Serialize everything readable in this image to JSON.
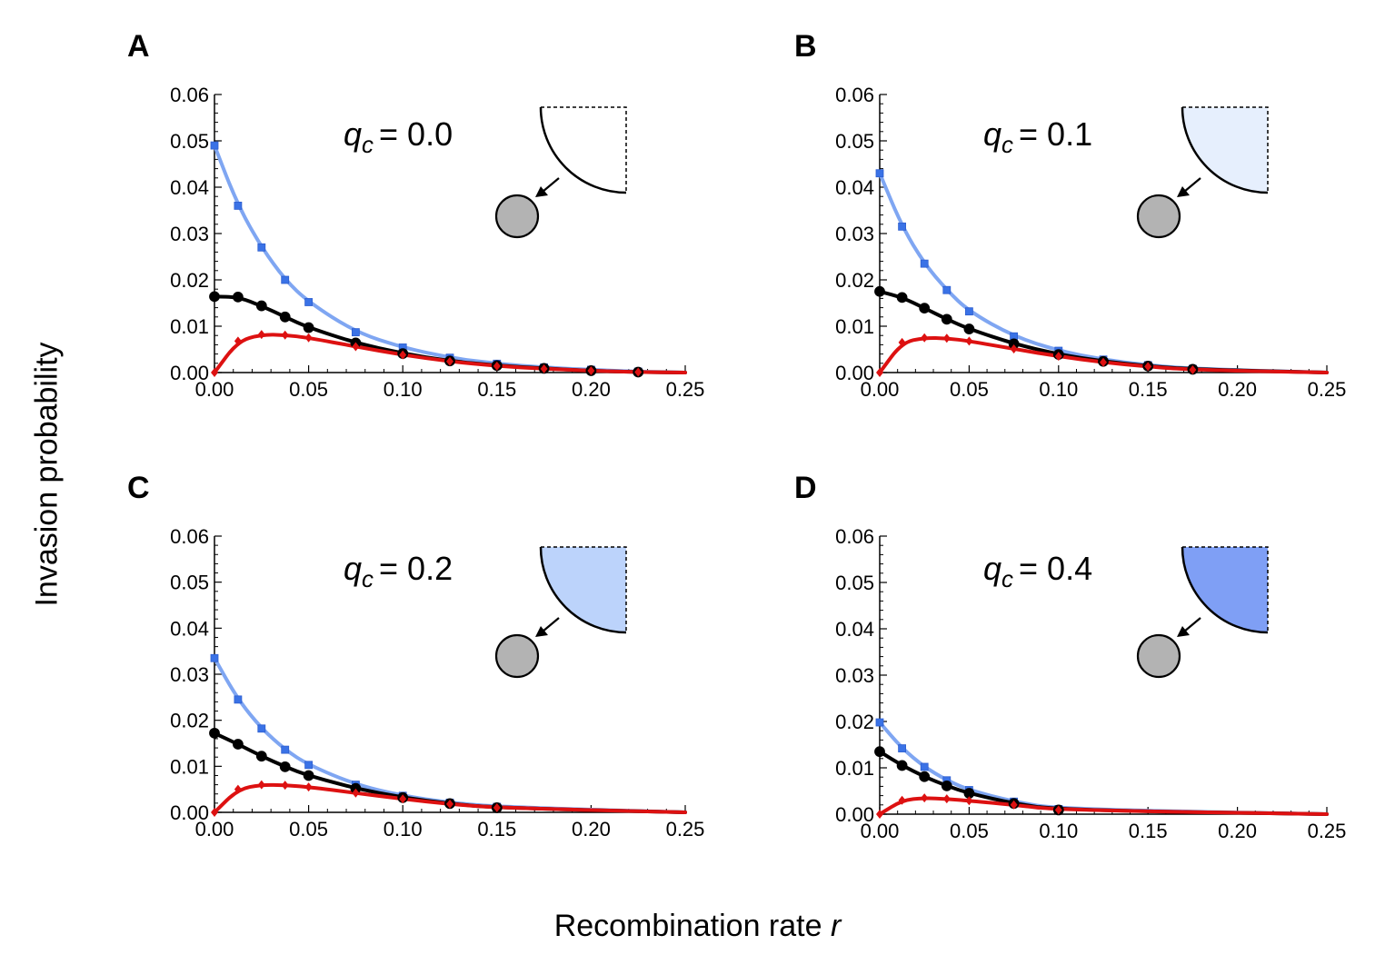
{
  "figure": {
    "ylabel": "Invasion probability",
    "xlabel": "Recombination rate",
    "xlabel_var": "r"
  },
  "colors": {
    "blue_line": "#7fa6f2",
    "blue_marker": "#3a72e6",
    "black_line": "#000000",
    "red_line": "#dd1111",
    "marker_gray": "#b3b3b3"
  },
  "chart_data": [
    {
      "type": "line",
      "panel": "A",
      "annotation": {
        "var": "q",
        "sub": "c",
        "eq": "= 0.0"
      },
      "inset_fill": "#ffffff",
      "xlim": [
        0,
        0.25
      ],
      "ylim": [
        0,
        0.06
      ],
      "xticks": [
        "0.00",
        "0.05",
        "0.10",
        "0.15",
        "0.20",
        "0.25"
      ],
      "yticks": [
        "0.00",
        "0.01",
        "0.02",
        "0.03",
        "0.04",
        "0.05",
        "0.06"
      ],
      "series": [
        {
          "name": "blue",
          "x": [
            0,
            0.0125,
            0.025,
            0.0375,
            0.05,
            0.075,
            0.1,
            0.125,
            0.15,
            0.175,
            0.2,
            0.225
          ],
          "y": [
            0.049,
            0.036,
            0.027,
            0.02,
            0.0152,
            0.0087,
            0.0054,
            0.0032,
            0.0019,
            0.0011,
            0.0006,
            0.0002
          ]
        },
        {
          "name": "black",
          "x": [
            0,
            0.0125,
            0.025,
            0.0375,
            0.05,
            0.075,
            0.1,
            0.125,
            0.15,
            0.175,
            0.2,
            0.225
          ],
          "y": [
            0.0164,
            0.0163,
            0.0144,
            0.012,
            0.0097,
            0.0064,
            0.0041,
            0.0025,
            0.0015,
            0.0009,
            0.0004,
            0.0001
          ]
        },
        {
          "name": "red",
          "x": [
            0,
            0.0125,
            0.025,
            0.0375,
            0.05,
            0.075,
            0.1,
            0.125,
            0.15,
            0.175,
            0.2,
            0.225
          ],
          "y": [
            0.0,
            0.0068,
            0.0082,
            0.0081,
            0.0075,
            0.0056,
            0.0038,
            0.0024,
            0.0014,
            0.0008,
            0.0004,
            0.0001
          ]
        }
      ]
    },
    {
      "type": "line",
      "panel": "B",
      "annotation": {
        "var": "q",
        "sub": "c",
        "eq": "= 0.1"
      },
      "inset_fill": "#e6effd",
      "xlim": [
        0,
        0.25
      ],
      "ylim": [
        0,
        0.06
      ],
      "xticks": [
        "0.00",
        "0.05",
        "0.10",
        "0.15",
        "0.20",
        "0.25"
      ],
      "yticks": [
        "0.00",
        "0.01",
        "0.02",
        "0.03",
        "0.04",
        "0.05",
        "0.06"
      ],
      "series": [
        {
          "name": "blue",
          "x": [
            0,
            0.0125,
            0.025,
            0.0375,
            0.05,
            0.075,
            0.1,
            0.125,
            0.15,
            0.175
          ],
          "y": [
            0.043,
            0.0315,
            0.0235,
            0.0178,
            0.0132,
            0.0078,
            0.0047,
            0.0028,
            0.0016,
            0.0008
          ]
        },
        {
          "name": "black",
          "x": [
            0,
            0.0125,
            0.025,
            0.0375,
            0.05,
            0.075,
            0.1,
            0.125,
            0.15,
            0.175
          ],
          "y": [
            0.0175,
            0.0162,
            0.0139,
            0.0115,
            0.0094,
            0.0062,
            0.0039,
            0.0024,
            0.0014,
            0.0007
          ]
        },
        {
          "name": "red",
          "x": [
            0,
            0.0125,
            0.025,
            0.0375,
            0.05,
            0.075,
            0.1,
            0.125,
            0.15,
            0.175
          ],
          "y": [
            0.0,
            0.0065,
            0.0075,
            0.0074,
            0.0068,
            0.0051,
            0.0035,
            0.0022,
            0.0013,
            0.0006
          ]
        }
      ]
    },
    {
      "type": "line",
      "panel": "C",
      "annotation": {
        "var": "q",
        "sub": "c",
        "eq": "= 0.2"
      },
      "inset_fill": "#bcd3fb",
      "xlim": [
        0,
        0.25
      ],
      "ylim": [
        0,
        0.06
      ],
      "xticks": [
        "0.00",
        "0.05",
        "0.10",
        "0.15",
        "0.20",
        "0.25"
      ],
      "yticks": [
        "0.00",
        "0.01",
        "0.02",
        "0.03",
        "0.04",
        "0.05",
        "0.06"
      ],
      "series": [
        {
          "name": "blue",
          "x": [
            0,
            0.0125,
            0.025,
            0.0375,
            0.05,
            0.075,
            0.1,
            0.125,
            0.15
          ],
          "y": [
            0.0335,
            0.0245,
            0.0182,
            0.0136,
            0.0103,
            0.006,
            0.0036,
            0.0021,
            0.0012
          ]
        },
        {
          "name": "black",
          "x": [
            0,
            0.0125,
            0.025,
            0.0375,
            0.05,
            0.075,
            0.1,
            0.125,
            0.15
          ],
          "y": [
            0.0172,
            0.0148,
            0.0122,
            0.0099,
            0.008,
            0.0052,
            0.0032,
            0.0019,
            0.001
          ]
        },
        {
          "name": "red",
          "x": [
            0,
            0.0125,
            0.025,
            0.0375,
            0.05,
            0.075,
            0.1,
            0.125,
            0.15
          ],
          "y": [
            0.0,
            0.005,
            0.006,
            0.0059,
            0.0055,
            0.0042,
            0.0029,
            0.0018,
            0.001
          ]
        }
      ]
    },
    {
      "type": "line",
      "panel": "D",
      "annotation": {
        "var": "q",
        "sub": "c",
        "eq": "= 0.4"
      },
      "inset_fill": "#7f9ff5",
      "xlim": [
        0,
        0.25
      ],
      "ylim": [
        0,
        0.06
      ],
      "xticks": [
        "0.00",
        "0.05",
        "0.10",
        "0.15",
        "0.20",
        "0.25"
      ],
      "yticks": [
        "0.00",
        "0.01",
        "0.02",
        "0.03",
        "0.04",
        "0.05",
        "0.06"
      ],
      "series": [
        {
          "name": "blue",
          "x": [
            0,
            0.0125,
            0.025,
            0.0375,
            0.05,
            0.075,
            0.1
          ],
          "y": [
            0.0198,
            0.0142,
            0.0102,
            0.0073,
            0.0052,
            0.0027,
            0.0011
          ]
        },
        {
          "name": "black",
          "x": [
            0,
            0.0125,
            0.025,
            0.0375,
            0.05,
            0.075,
            0.1
          ],
          "y": [
            0.0135,
            0.0105,
            0.0081,
            0.0061,
            0.0045,
            0.0023,
            0.0009
          ]
        },
        {
          "name": "red",
          "x": [
            0,
            0.0125,
            0.025,
            0.0375,
            0.05,
            0.075,
            0.1
          ],
          "y": [
            0.0,
            0.003,
            0.0035,
            0.0033,
            0.0029,
            0.002,
            0.0009
          ]
        }
      ]
    }
  ]
}
